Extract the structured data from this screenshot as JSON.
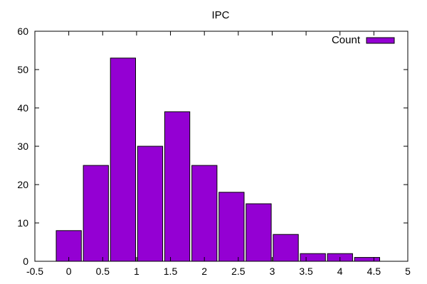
{
  "chart_data": {
    "type": "bar",
    "title": "IPC",
    "xlabel": "",
    "ylabel": "",
    "x": [
      0,
      0.4,
      0.8,
      1.2,
      1.6,
      2.0,
      2.4,
      2.8,
      3.2,
      3.6,
      4.0,
      4.4
    ],
    "series": [
      {
        "name": "Count",
        "color": "#9400d3",
        "values": [
          8,
          25,
          53,
          30,
          39,
          25,
          18,
          15,
          7,
          2,
          2,
          1
        ]
      }
    ],
    "xlim": [
      -0.5,
      5
    ],
    "ylim": [
      0,
      60
    ],
    "xticks": [
      -0.5,
      0,
      0.5,
      1,
      1.5,
      2,
      2.5,
      3,
      3.5,
      4,
      4.5,
      5
    ],
    "xtick_labels": [
      "-0.5",
      "0",
      "0.5",
      "1",
      "1.5",
      "2",
      "2.5",
      "3",
      "3.5",
      "4",
      "4.5",
      "5"
    ],
    "yticks": [
      0,
      10,
      20,
      30,
      40,
      50,
      60
    ],
    "ytick_labels": [
      "0",
      "10",
      "20",
      "30",
      "40",
      "50",
      "60"
    ],
    "bar_width": 0.37,
    "grid": false,
    "legend_position": "top-right"
  }
}
